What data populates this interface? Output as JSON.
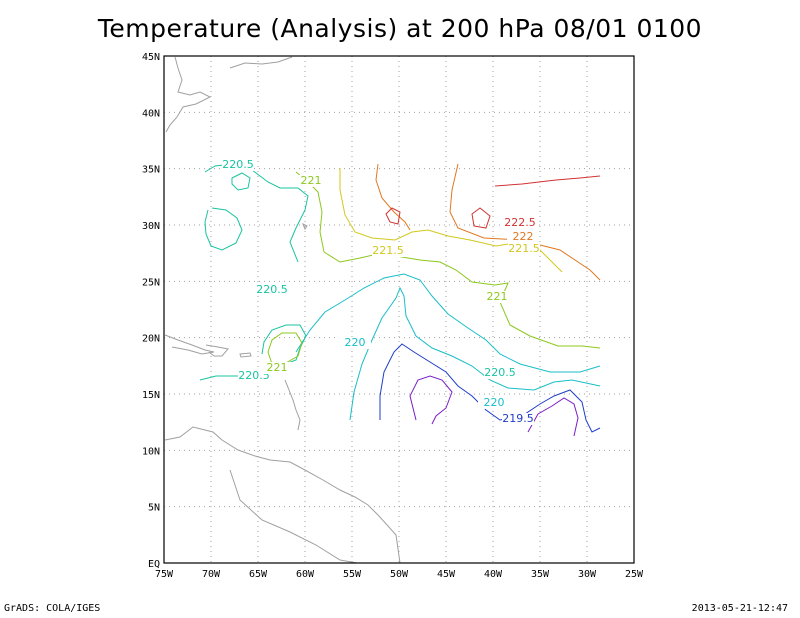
{
  "title": "Temperature (Analysis) at 200 hPa 08/01 0100",
  "footer": {
    "left": "GrADS: COLA/IGES",
    "right": "2013-05-21-12:47"
  },
  "axes": {
    "lon_labels": [
      "75W",
      "70W",
      "65W",
      "60W",
      "55W",
      "50W",
      "45W",
      "40W",
      "35W",
      "30W",
      "25W"
    ],
    "lat_labels": [
      "EQ",
      "5N",
      "10N",
      "15N",
      "20N",
      "25N",
      "30N",
      "35N",
      "40N",
      "45N"
    ]
  },
  "contour_labels": [
    {
      "text": "220.5",
      "color": "#19c4a0"
    },
    {
      "text": "221",
      "color": "#8cc81e"
    },
    {
      "text": "221.5",
      "color": "#d2c81e"
    },
    {
      "text": "220.5",
      "color": "#19c4a0"
    },
    {
      "text": "220",
      "color": "#19bec8"
    },
    {
      "text": "220.5",
      "color": "#19c4a0"
    },
    {
      "text": "221",
      "color": "#8cc81e"
    },
    {
      "text": "221",
      "color": "#8cc81e"
    },
    {
      "text": "222.5",
      "color": "#d23232"
    },
    {
      "text": "222",
      "color": "#e07822"
    },
    {
      "text": "221.5",
      "color": "#d2c81e"
    },
    {
      "text": "220.5",
      "color": "#19c4a0"
    },
    {
      "text": "220",
      "color": "#19bec8"
    },
    {
      "text": "219.5",
      "color": "#1e3cc8"
    }
  ],
  "colors": {
    "coast": "#a0a0a0",
    "grid": "#a0a0a0",
    "frame": "#000000"
  }
}
